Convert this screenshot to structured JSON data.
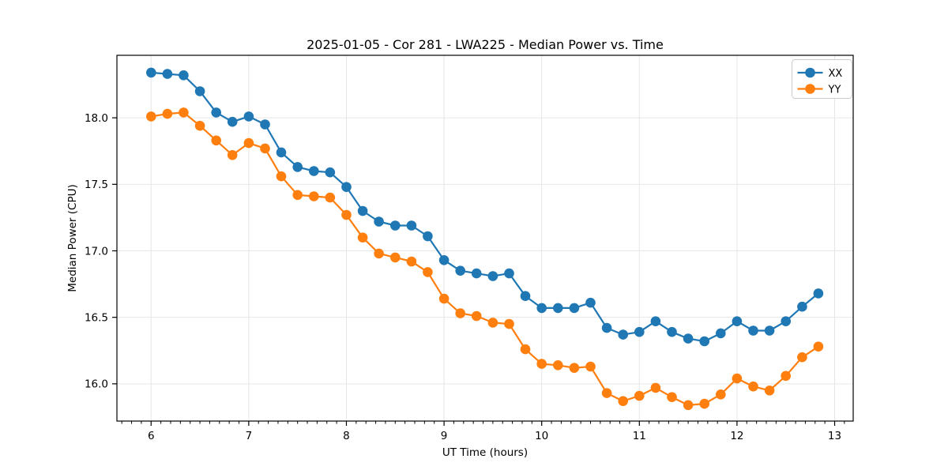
{
  "figure": {
    "background": "#ffffff"
  },
  "chart_data": {
    "type": "line",
    "title": "2025-01-05 - Cor 281 - LWA225 - Median Power vs. Time",
    "xlabel": "UT Time (hours)",
    "ylabel": "Median Power (CPU)",
    "grid": true,
    "legend_position": "upper right",
    "marker": "circle",
    "xlim": [
      5.65,
      13.19
    ],
    "ylim": [
      15.72,
      18.47
    ],
    "xticks": [
      6,
      7,
      8,
      9,
      10,
      11,
      12,
      13
    ],
    "yticks": [
      16.0,
      16.5,
      17.0,
      17.5,
      18.0
    ],
    "x_minor_step": 0.1,
    "x": [
      6.0,
      6.167,
      6.333,
      6.5,
      6.667,
      6.833,
      7.0,
      7.167,
      7.333,
      7.5,
      7.667,
      7.833,
      8.0,
      8.167,
      8.333,
      8.5,
      8.667,
      8.833,
      9.0,
      9.167,
      9.333,
      9.5,
      9.667,
      9.833,
      10.0,
      10.167,
      10.333,
      10.5,
      10.667,
      10.833,
      11.0,
      11.167,
      11.333,
      11.5,
      11.667,
      11.833,
      12.0,
      12.167,
      12.333,
      12.5,
      12.667,
      12.833
    ],
    "series": [
      {
        "name": "XX",
        "color": "#1f77b4",
        "values": [
          18.34,
          18.33,
          18.32,
          18.2,
          18.04,
          17.97,
          18.01,
          17.95,
          17.74,
          17.63,
          17.6,
          17.59,
          17.48,
          17.3,
          17.22,
          17.19,
          17.19,
          17.11,
          16.93,
          16.85,
          16.83,
          16.81,
          16.83,
          16.66,
          16.57,
          16.57,
          16.57,
          16.61,
          16.42,
          16.37,
          16.39,
          16.47,
          16.39,
          16.34,
          16.32,
          16.38,
          16.47,
          16.4,
          16.4,
          16.47,
          16.58,
          16.68
        ]
      },
      {
        "name": "YY",
        "color": "#ff7f0e",
        "values": [
          18.01,
          18.03,
          18.04,
          17.94,
          17.83,
          17.72,
          17.81,
          17.77,
          17.56,
          17.42,
          17.41,
          17.4,
          17.27,
          17.1,
          16.98,
          16.95,
          16.92,
          16.84,
          16.64,
          16.53,
          16.51,
          16.46,
          16.45,
          16.26,
          16.15,
          16.14,
          16.12,
          16.13,
          15.93,
          15.87,
          15.91,
          15.97,
          15.9,
          15.84,
          15.85,
          15.92,
          16.04,
          15.98,
          15.95,
          16.06,
          16.2,
          16.28
        ]
      }
    ],
    "style": {
      "grid_color": "#e6e6e6",
      "spine_color": "#000000",
      "legend_border_color": "#cccccc",
      "legend_background": "#ffffff"
    }
  }
}
